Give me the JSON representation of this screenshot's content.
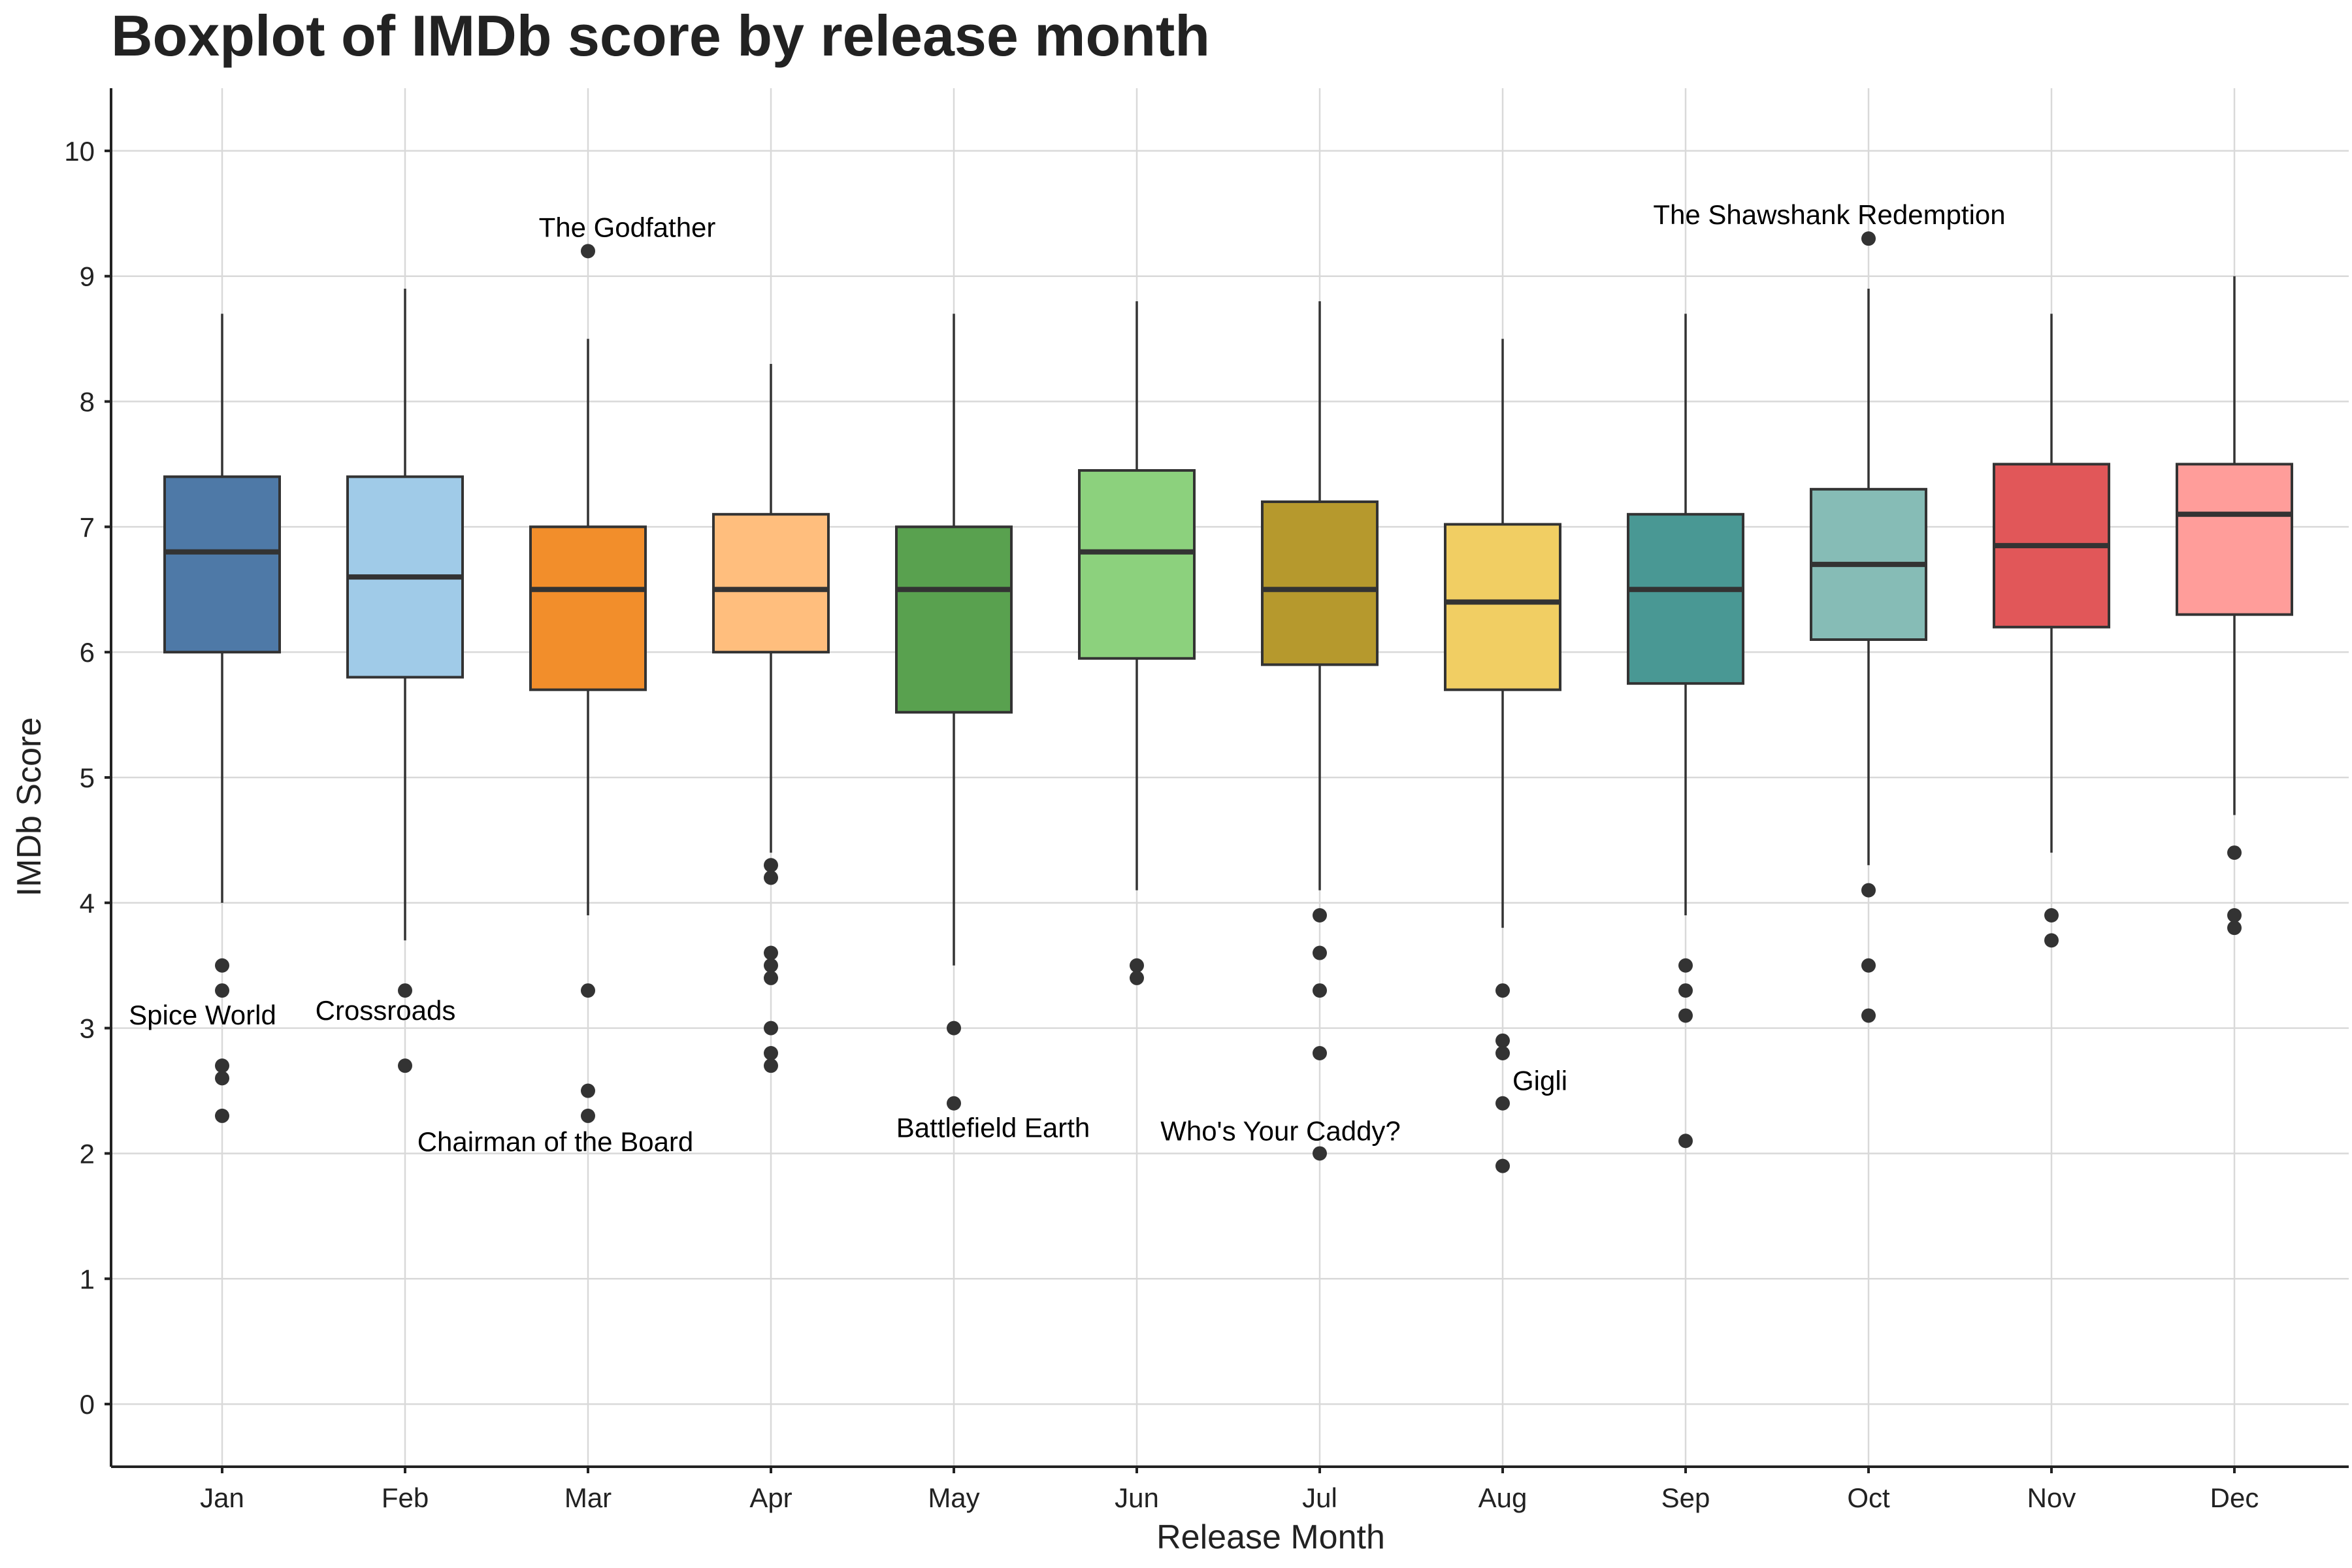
{
  "chart_data": {
    "type": "boxplot",
    "title": "Boxplot of IMDb score by release month",
    "xlabel": "Release Month",
    "ylabel": "IMDb Score",
    "ylim": [
      -0.5,
      10.5
    ],
    "yticks": [
      0,
      1,
      2,
      3,
      4,
      5,
      6,
      7,
      8,
      9,
      10
    ],
    "grid": true,
    "categories": [
      "Jan",
      "Feb",
      "Mar",
      "Apr",
      "May",
      "Jun",
      "Jul",
      "Aug",
      "Sep",
      "Oct",
      "Nov",
      "Dec"
    ],
    "boxes": [
      {
        "month": "Jan",
        "color": "#4e79a7",
        "whisker_low": 4.0,
        "q1": 6.0,
        "median": 6.8,
        "q3": 7.4,
        "whisker_high": 8.7,
        "outliers": [
          3.5,
          3.3,
          2.7,
          2.6,
          2.3
        ]
      },
      {
        "month": "Feb",
        "color": "#a0cbe8",
        "whisker_low": 3.7,
        "q1": 5.8,
        "median": 6.6,
        "q3": 7.4,
        "whisker_high": 8.9,
        "outliers": [
          3.3,
          2.7
        ]
      },
      {
        "month": "Mar",
        "color": "#f28e2b",
        "whisker_low": 3.9,
        "q1": 5.7,
        "median": 6.5,
        "q3": 7.0,
        "whisker_high": 8.5,
        "outliers": [
          9.2,
          3.3,
          2.5,
          2.3
        ]
      },
      {
        "month": "Apr",
        "color": "#ffbe7d",
        "whisker_low": 4.4,
        "q1": 6.0,
        "median": 6.5,
        "q3": 7.1,
        "whisker_high": 8.3,
        "outliers": [
          4.3,
          4.2,
          3.6,
          3.5,
          3.4,
          3.0,
          2.8,
          2.7
        ]
      },
      {
        "month": "May",
        "color": "#59a14f",
        "whisker_low": 3.5,
        "q1": 5.52,
        "median": 6.5,
        "q3": 7.0,
        "whisker_high": 8.7,
        "outliers": [
          3.0,
          2.4
        ]
      },
      {
        "month": "Jun",
        "color": "#8cd17d",
        "whisker_low": 4.1,
        "q1": 5.95,
        "median": 6.8,
        "q3": 7.45,
        "whisker_high": 8.8,
        "outliers": [
          3.5,
          3.4
        ]
      },
      {
        "month": "Jul",
        "color": "#b6992d",
        "whisker_low": 4.1,
        "q1": 5.9,
        "median": 6.5,
        "q3": 7.2,
        "whisker_high": 8.8,
        "outliers": [
          3.9,
          3.6,
          3.3,
          2.8,
          2.0
        ]
      },
      {
        "month": "Aug",
        "color": "#f1ce63",
        "whisker_low": 3.8,
        "q1": 5.7,
        "median": 6.4,
        "q3": 7.02,
        "whisker_high": 8.5,
        "outliers": [
          3.3,
          2.9,
          2.8,
          2.4,
          1.9
        ]
      },
      {
        "month": "Sep",
        "color": "#499894",
        "whisker_low": 3.9,
        "q1": 5.75,
        "median": 6.5,
        "q3": 7.1,
        "whisker_high": 8.7,
        "outliers": [
          3.5,
          3.3,
          3.1,
          2.1
        ]
      },
      {
        "month": "Oct",
        "color": "#86bcb6",
        "whisker_low": 4.3,
        "q1": 6.1,
        "median": 6.7,
        "q3": 7.3,
        "whisker_high": 8.9,
        "outliers": [
          9.3,
          4.1,
          3.5,
          3.1
        ]
      },
      {
        "month": "Nov",
        "color": "#e15759",
        "whisker_low": 4.4,
        "q1": 6.2,
        "median": 6.85,
        "q3": 7.5,
        "whisker_high": 8.7,
        "outliers": [
          3.9,
          3.7
        ]
      },
      {
        "month": "Dec",
        "color": "#ff9d9a",
        "whisker_low": 4.7,
        "q1": 6.3,
        "median": 7.1,
        "q3": 7.5,
        "whisker_high": 9.0,
        "outliers": [
          4.4,
          3.9,
          3.8
        ]
      }
    ],
    "annotations": [
      {
        "text": "The Godfather",
        "month": "Mar",
        "y": 9.2
      },
      {
        "text": "The Shawshank Redemption",
        "month": "Oct",
        "y": 9.3
      },
      {
        "text": "Spice World",
        "month": "Jan",
        "y": 2.3
      },
      {
        "text": "Crossroads",
        "month": "Feb",
        "y": 2.7
      },
      {
        "text": "Chairman of the Board",
        "month": "Mar",
        "y": 2.3
      },
      {
        "text": "Battlefield Earth",
        "month": "May",
        "y": 2.4
      },
      {
        "text": "Who's Your Caddy?",
        "month": "Jul",
        "y": 2.0
      },
      {
        "text": "Gigli",
        "month": "Aug",
        "y": 2.4
      }
    ]
  }
}
